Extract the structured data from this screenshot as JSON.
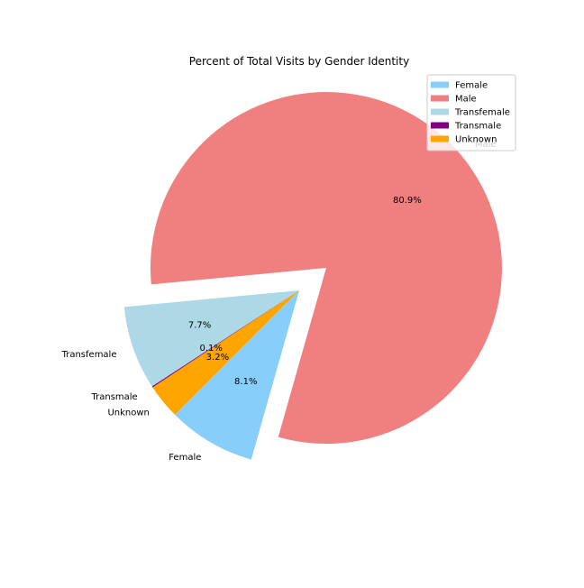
{
  "chart_data": {
    "type": "pie",
    "title": "Percent of Total Visits by Gender Identity",
    "categories": [
      "Female",
      "Male",
      "Transfemale",
      "Transmale",
      "Unknown"
    ],
    "values": [
      8.1,
      80.9,
      7.7,
      0.1,
      3.2
    ],
    "percent_labels": [
      "8.1%",
      "80.9%",
      "7.7%",
      "0.1%",
      "3.2%"
    ],
    "colors": [
      "#87cefa",
      "#f08080",
      "#add8e6",
      "#800080",
      "#ffa500"
    ],
    "exploded": [
      "Male"
    ],
    "legend": {
      "position": "upper right",
      "entries": [
        "Female",
        "Male",
        "Transfemale",
        "Transmale",
        "Unknown"
      ]
    }
  }
}
